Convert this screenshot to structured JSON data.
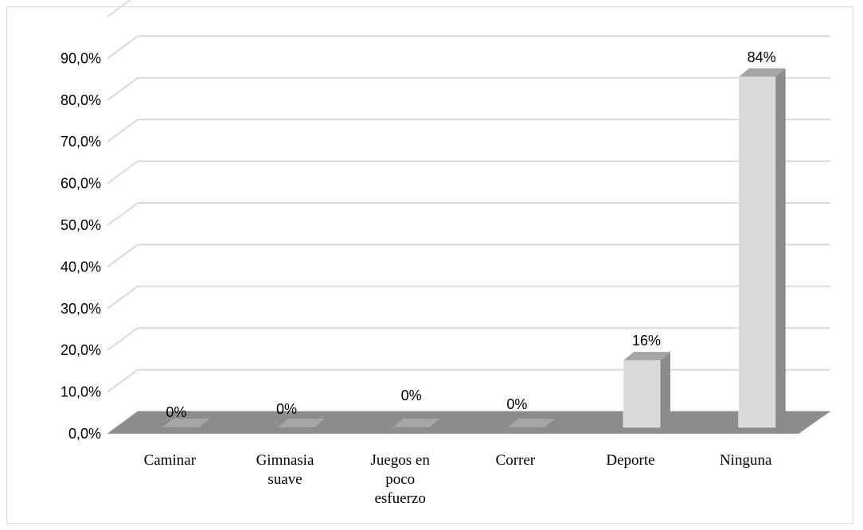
{
  "chart_data": {
    "type": "bar",
    "style": "3d-column",
    "categories": [
      [
        "Caminar"
      ],
      [
        "Gimnasia",
        "suave"
      ],
      [
        "Juegos en",
        "poco",
        "esfuerzo"
      ],
      [
        "Correr"
      ],
      [
        "Deporte"
      ],
      [
        "Ninguna"
      ]
    ],
    "values": [
      0,
      0,
      0,
      0,
      16,
      84
    ],
    "data_labels": [
      "0%",
      "0%",
      "0%",
      "0%",
      "16%",
      "84%"
    ],
    "y_ticks": [
      "0,0%",
      "10,0%",
      "20,0%",
      "30,0%",
      "40,0%",
      "50,0%",
      "60,0%",
      "70,0%",
      "80,0%",
      "90,0%"
    ],
    "ylim": [
      0,
      90
    ],
    "grid": true,
    "legend": "none",
    "colors": {
      "bar_front": "#d9d9d9",
      "bar_side": "#8c8c8c",
      "bar_top": "#a6a6a6",
      "floor": "#8c8c8c",
      "grid": "#d9d9d9"
    }
  }
}
